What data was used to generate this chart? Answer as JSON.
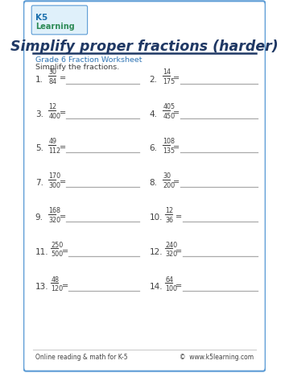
{
  "title": "Simplify proper fractions (harder)",
  "subtitle": "Grade 6 Fraction Worksheet",
  "instruction": "Simplify the fractions.",
  "footer_left": "Online reading & math for K-5",
  "footer_right": "©  www.k5learning.com",
  "bg_color": "#ffffff",
  "border_color": "#5b9bd5",
  "title_color": "#1f3864",
  "subtitle_color": "#2e74b5",
  "text_color": "#404040",
  "line_color": "#aaaaaa",
  "problems": [
    {
      "num": "1.",
      "numer": "30",
      "denom": "84",
      "col": 0
    },
    {
      "num": "2.",
      "numer": "14",
      "denom": "175",
      "col": 1
    },
    {
      "num": "3.",
      "numer": "12",
      "denom": "400",
      "col": 0
    },
    {
      "num": "4.",
      "numer": "405",
      "denom": "450",
      "col": 1
    },
    {
      "num": "5.",
      "numer": "49",
      "denom": "112",
      "col": 0
    },
    {
      "num": "6.",
      "numer": "108",
      "denom": "135",
      "col": 1
    },
    {
      "num": "7.",
      "numer": "170",
      "denom": "300",
      "col": 0
    },
    {
      "num": "8.",
      "numer": "30",
      "denom": "200",
      "col": 1
    },
    {
      "num": "9.",
      "numer": "168",
      "denom": "320",
      "col": 0
    },
    {
      "num": "10.",
      "numer": "12",
      "denom": "36",
      "col": 1
    },
    {
      "num": "11.",
      "numer": "250",
      "denom": "500",
      "col": 0
    },
    {
      "num": "12.",
      "numer": "240",
      "denom": "320",
      "col": 1
    },
    {
      "num": "13.",
      "numer": "48",
      "denom": "120",
      "col": 0
    },
    {
      "num": "14.",
      "numer": "64",
      "denom": "100",
      "col": 1
    }
  ]
}
